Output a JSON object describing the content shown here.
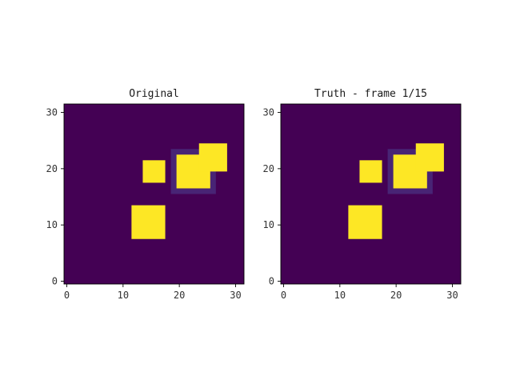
{
  "chart_data": [
    {
      "type": "heatmap",
      "title": "Original",
      "grid_size": 32,
      "xlim": [
        -0.5,
        31.5
      ],
      "ylim": [
        -0.5,
        31.5
      ],
      "xticks": [
        0,
        10,
        20,
        30
      ],
      "yticks": [
        0,
        10,
        20,
        30
      ],
      "colormap": "viridis",
      "background_value": 0,
      "regions": [
        {
          "x": [
            12,
            17
          ],
          "y": [
            8,
            13
          ],
          "value": 1.0
        },
        {
          "x": [
            14,
            17
          ],
          "y": [
            18,
            21
          ],
          "value": 1.0
        },
        {
          "x": [
            19,
            26
          ],
          "y": [
            16,
            23
          ],
          "value": 0.12
        },
        {
          "x": [
            20,
            25
          ],
          "y": [
            17,
            22
          ],
          "value": 1.0
        },
        {
          "x": [
            24,
            28
          ],
          "y": [
            20,
            24
          ],
          "value": 1.0
        }
      ]
    },
    {
      "type": "heatmap",
      "title": "Truth - frame 1/15",
      "grid_size": 32,
      "xlim": [
        -0.5,
        31.5
      ],
      "ylim": [
        -0.5,
        31.5
      ],
      "xticks": [
        0,
        10,
        20,
        30
      ],
      "yticks": [
        0,
        10,
        20,
        30
      ],
      "colormap": "viridis",
      "background_value": 0,
      "regions": [
        {
          "x": [
            12,
            17
          ],
          "y": [
            8,
            13
          ],
          "value": 1.0
        },
        {
          "x": [
            14,
            17
          ],
          "y": [
            18,
            21
          ],
          "value": 1.0
        },
        {
          "x": [
            19,
            26
          ],
          "y": [
            16,
            23
          ],
          "value": 0.12
        },
        {
          "x": [
            20,
            25
          ],
          "y": [
            17,
            22
          ],
          "value": 1.0
        },
        {
          "x": [
            24,
            28
          ],
          "y": [
            20,
            24
          ],
          "value": 1.0
        }
      ]
    }
  ]
}
